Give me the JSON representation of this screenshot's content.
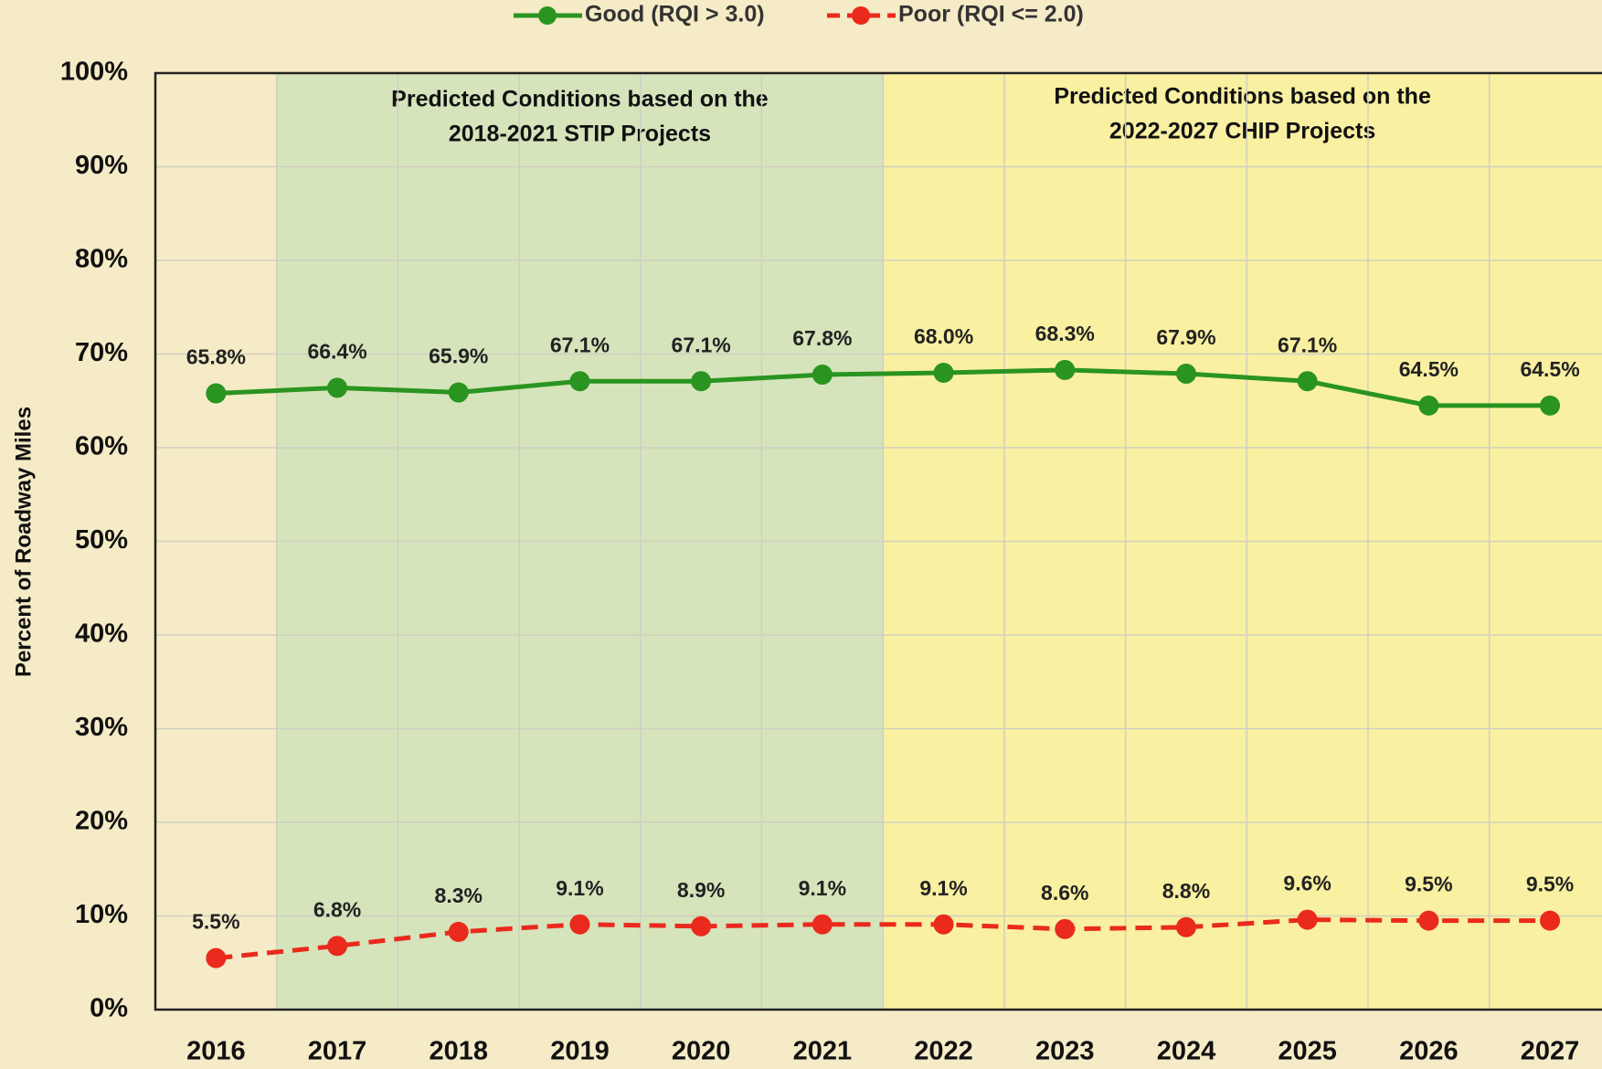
{
  "chart_data": {
    "type": "line",
    "y_label": "Percent of Roadway Miles",
    "categories": [
      "2016",
      "2017",
      "2018",
      "2019",
      "2020",
      "2021",
      "2022",
      "2023",
      "2024",
      "2025",
      "2026",
      "2027"
    ],
    "series": [
      {
        "name": "Good (RQI > 3.0)",
        "color": "#2a9420",
        "dash": false,
        "values": [
          65.8,
          66.4,
          65.9,
          67.1,
          67.1,
          67.8,
          68.0,
          68.3,
          67.9,
          67.1,
          64.5,
          64.5
        ],
        "value_labels": [
          "65.8%",
          "66.4%",
          "65.9%",
          "67.1%",
          "67.1%",
          "67.8%",
          "68.0%",
          "68.3%",
          "67.9%",
          "67.1%",
          "64.5%",
          "64.5%"
        ]
      },
      {
        "name": "Poor (RQI <= 2.0)",
        "color": "#ea2a1c",
        "dash": true,
        "values": [
          5.5,
          6.8,
          8.3,
          9.1,
          8.9,
          9.1,
          9.1,
          8.6,
          8.8,
          9.6,
          9.5,
          9.5
        ],
        "value_labels": [
          "5.5%",
          "6.8%",
          "8.3%",
          "9.1%",
          "8.9%",
          "9.1%",
          "9.1%",
          "8.6%",
          "8.8%",
          "9.6%",
          "9.5%",
          "9.5%"
        ]
      }
    ],
    "ylim": [
      0,
      100
    ],
    "yticks": [
      {
        "value": 0,
        "label": "0%"
      },
      {
        "value": 10,
        "label": "10%"
      },
      {
        "value": 20,
        "label": "20%"
      },
      {
        "value": 30,
        "label": "30%"
      },
      {
        "value": 40,
        "label": "40%"
      },
      {
        "value": 50,
        "label": "50%"
      },
      {
        "value": 60,
        "label": "60%"
      },
      {
        "value": 70,
        "label": "70%"
      },
      {
        "value": 80,
        "label": "80%"
      },
      {
        "value": 90,
        "label": "90%"
      },
      {
        "value": 100,
        "label": "100%"
      }
    ],
    "grid": true,
    "legend": "top",
    "regions": [
      {
        "lines": [
          "Predicted Conditions based on the",
          "2018-2021 STIP Projects"
        ],
        "color": "#cfe3b8"
      },
      {
        "lines": [
          "Predicted Conditions based on the",
          "2022-2027 CHIP Projects"
        ],
        "color": "#f9f19a"
      }
    ]
  }
}
